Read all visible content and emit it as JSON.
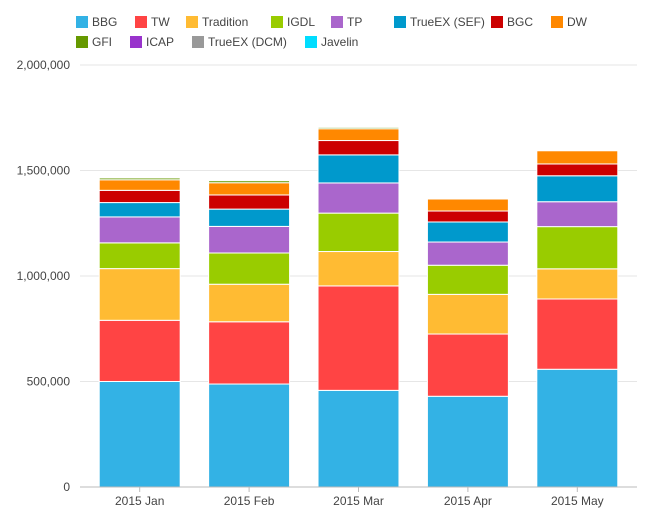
{
  "chart_data": {
    "type": "bar",
    "stacked": true,
    "title": "",
    "xlabel": "",
    "ylabel": "",
    "categories": [
      "2015 Jan",
      "2015 Feb",
      "2015 Mar",
      "2015 Apr",
      "2015 May"
    ],
    "ylim": [
      0,
      2000000
    ],
    "yticks": [
      {
        "value": 0,
        "label": "0"
      },
      {
        "value": 500000,
        "label": "500,000"
      },
      {
        "value": 1000000,
        "label": "1,000,000"
      },
      {
        "value": 1500000,
        "label": "1,500,000"
      },
      {
        "value": 2000000,
        "label": "2,000,000"
      }
    ],
    "grid": true,
    "legend_position": "top",
    "series": [
      {
        "name": "BBG",
        "color": "#33b2e5",
        "values": [
          500000,
          488000,
          458000,
          430000,
          558000
        ]
      },
      {
        "name": "TW",
        "color": "#ff4444",
        "values": [
          290000,
          295000,
          495000,
          295000,
          333000
        ]
      },
      {
        "name": "Tradition",
        "color": "#ffbb33",
        "values": [
          245000,
          178000,
          163000,
          188000,
          143000
        ]
      },
      {
        "name": "IGDL",
        "color": "#99cc00",
        "values": [
          122000,
          148000,
          182000,
          138000,
          200000
        ]
      },
      {
        "name": "TP",
        "color": "#aa66cc",
        "values": [
          123000,
          126000,
          143000,
          110000,
          118000
        ]
      },
      {
        "name": "TrueEX (SEF)",
        "color": "#0099cc",
        "values": [
          68000,
          82000,
          133000,
          95000,
          123000
        ]
      },
      {
        "name": "BGC",
        "color": "#cc0000",
        "values": [
          58000,
          67000,
          68000,
          52000,
          56000
        ]
      },
      {
        "name": "DW",
        "color": "#ff8800",
        "values": [
          50000,
          58000,
          56000,
          57000,
          63000
        ]
      },
      {
        "name": "GFI",
        "color": "#669900",
        "values": [
          9000,
          10000,
          7000,
          3000,
          4000
        ]
      },
      {
        "name": "ICAP",
        "color": "#9933cc",
        "values": [
          1000,
          1000,
          1000,
          1000,
          1000
        ]
      },
      {
        "name": "TrueEX (DCM)",
        "color": "#999999",
        "values": [
          2000,
          2000,
          2000,
          2000,
          2000
        ]
      },
      {
        "name": "Javelin",
        "color": "#00ddff",
        "values": [
          0,
          0,
          0,
          0,
          0
        ]
      }
    ]
  }
}
